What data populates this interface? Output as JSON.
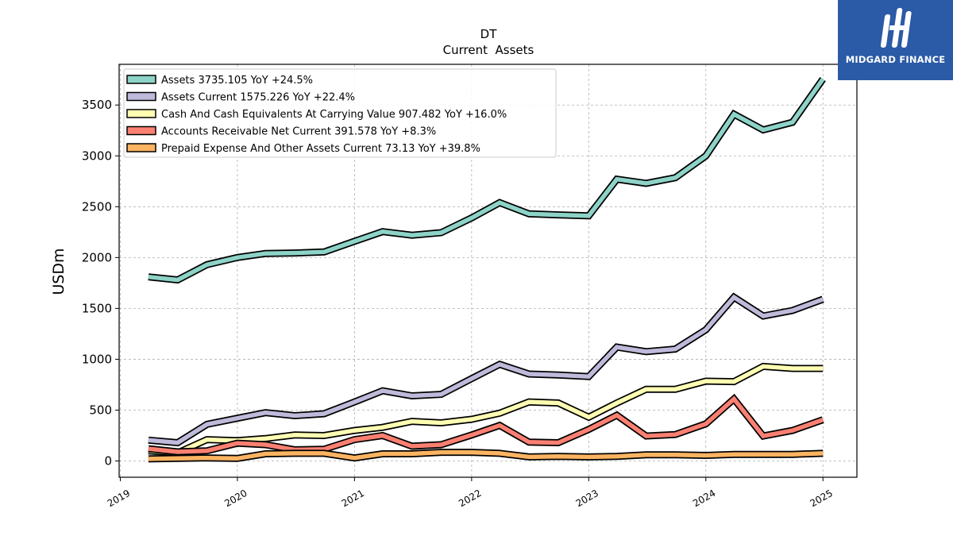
{
  "chart_data": {
    "type": "line",
    "title": "DT",
    "subtitle": "Current  Assets",
    "xlabel": "",
    "ylabel": "USDm",
    "xlim": [
      2018.99,
      2025.29
    ],
    "ylim": [
      -160,
      3900
    ],
    "x_ticks": [
      2019,
      2020,
      2021,
      2022,
      2023,
      2024,
      2025
    ],
    "x_tick_labels": [
      "2019",
      "2020",
      "2021",
      "2022",
      "2023",
      "2024",
      "2025"
    ],
    "y_ticks": [
      0,
      500,
      1000,
      1500,
      2000,
      2500,
      3000,
      3500
    ],
    "y_tick_labels": [
      "0",
      "500",
      "1000",
      "1500",
      "2000",
      "2500",
      "3000",
      "3500"
    ],
    "grid": true,
    "legend_position": "top-left",
    "x": [
      2019.24,
      2019.49,
      2019.74,
      2020.0,
      2020.24,
      2020.49,
      2020.74,
      2021.0,
      2021.24,
      2021.49,
      2021.74,
      2022.0,
      2022.24,
      2022.49,
      2022.74,
      2023.0,
      2023.24,
      2023.49,
      2023.74,
      2024.0,
      2024.24,
      2024.49,
      2024.74,
      2025.0
    ],
    "series": [
      {
        "name": "Assets  3735.105 YoY +24.5%",
        "color": "#8dd3c7",
        "values": [
          1810,
          1780,
          1930,
          2000,
          2040,
          2045,
          2055,
          2160,
          2255,
          2220,
          2245,
          2390,
          2540,
          2430,
          2420,
          2410,
          2770,
          2730,
          2785,
          3000,
          3410,
          3255,
          3330,
          3755
        ]
      },
      {
        "name": "Assets Current  1575.226 YoY +22.4%",
        "color": "#bebada",
        "values": [
          205,
          180,
          360,
          420,
          475,
          445,
          465,
          580,
          690,
          640,
          655,
          810,
          950,
          855,
          845,
          830,
          1120,
          1075,
          1100,
          1290,
          1610,
          1425,
          1480,
          1590
        ]
      },
      {
        "name": "Cash And Cash Equivalents At Carrying Value  907.482 YoY +16.0%",
        "color": "#ffffb3",
        "values": [
          100,
          80,
          210,
          200,
          220,
          255,
          250,
          300,
          330,
          390,
          375,
          410,
          470,
          580,
          570,
          430,
          570,
          705,
          705,
          785,
          780,
          930,
          910,
          910
        ]
      },
      {
        "name": "Accounts Receivable Net Current  391.578 YoY +8.3%",
        "color": "#fb8072",
        "values": [
          120,
          90,
          100,
          175,
          160,
          110,
          115,
          210,
          250,
          145,
          160,
          255,
          350,
          185,
          180,
          310,
          450,
          245,
          260,
          365,
          610,
          245,
          300,
          405
        ]
      },
      {
        "name": "Prepaid Expense And Other Assets Current  73.13 YoY +39.8%",
        "color": "#fdb462",
        "values": [
          20,
          25,
          30,
          25,
          70,
          75,
          75,
          30,
          70,
          70,
          85,
          85,
          75,
          40,
          45,
          40,
          45,
          60,
          60,
          55,
          65,
          65,
          65,
          75
        ]
      }
    ]
  },
  "brand": {
    "name": "MIDGARD FINANCE",
    "background": "#2b5aa6",
    "text_color": "#ffffff"
  }
}
